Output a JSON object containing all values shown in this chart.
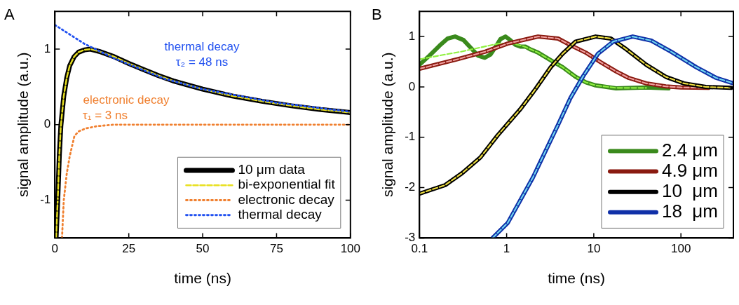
{
  "chart_data": [
    {
      "type": "line",
      "xlabel": "time (ns)",
      "ylabel": "signal amplitude (a.u.)",
      "xlim": [
        0,
        100
      ],
      "ylim": [
        -1.5,
        1.5
      ],
      "xticks": [
        0,
        25,
        50,
        75,
        100
      ],
      "yticks": [
        -1,
        0,
        1
      ],
      "grid": false,
      "legend": "bottom right",
      "marker": "none",
      "annotations": [
        "A",
        "thermal decay",
        "τ₂ = 48 ns",
        "electronic decay",
        "τ₁ = 3 ns"
      ],
      "series": [
        {
          "name": "10 μm data",
          "color": "#000000",
          "line_style": "solid",
          "x": [
            0.4,
            1,
            1.5,
            2,
            3,
            4,
            5,
            6.5,
            8,
            10,
            12,
            15,
            20,
            25,
            30,
            35,
            40,
            50,
            60,
            70,
            80,
            90,
            100
          ],
          "values": [
            -1.5,
            -0.95,
            -0.4,
            -0.02,
            0.38,
            0.62,
            0.78,
            0.9,
            0.96,
            0.99,
            1.0,
            0.97,
            0.9,
            0.81,
            0.73,
            0.65,
            0.58,
            0.47,
            0.38,
            0.31,
            0.25,
            0.2,
            0.16
          ]
        },
        {
          "name": "bi-exponential fit",
          "color": "#e8e020",
          "line_style": "dashed",
          "x": [
            0.4,
            1,
            1.5,
            2,
            3,
            4,
            5,
            6.5,
            8,
            10,
            12,
            15,
            20,
            25,
            30,
            35,
            40,
            50,
            60,
            70,
            80,
            90,
            100
          ],
          "values": [
            -1.5,
            -0.95,
            -0.4,
            -0.02,
            0.38,
            0.62,
            0.78,
            0.9,
            0.96,
            0.99,
            1.0,
            0.97,
            0.9,
            0.81,
            0.73,
            0.65,
            0.58,
            0.47,
            0.38,
            0.31,
            0.25,
            0.2,
            0.16
          ]
        },
        {
          "name": "electronic decay",
          "color": "#f08030",
          "line_style": "dotted",
          "x": [
            2.4,
            3,
            4,
            5,
            6.6,
            8,
            10.4,
            14.3,
            20,
            100
          ],
          "values": [
            -1.5,
            -1.0,
            -0.65,
            -0.42,
            -0.15,
            -0.09,
            -0.05,
            -0.02,
            0,
            0
          ]
        },
        {
          "name": "thermal decay",
          "color": "#2050f0",
          "line_style": "dotted",
          "x": [
            0,
            10,
            20,
            25,
            37,
            50,
            75,
            100
          ],
          "values": [
            1.32,
            1.07,
            0.88,
            0.8,
            0.61,
            0.47,
            0.29,
            0.17
          ]
        }
      ]
    },
    {
      "type": "line",
      "xlabel": "time (ns)",
      "ylabel": "signal amplitude (a.u.)",
      "log": "x",
      "xlim": [
        0.1,
        400
      ],
      "ylim": [
        -3,
        1.5
      ],
      "xticks": [
        0.1,
        1,
        10,
        100
      ],
      "yticks": [
        -3,
        -2,
        -1,
        0,
        1
      ],
      "grid": false,
      "legend": "bottom right",
      "marker": "none",
      "annotations": [
        "B"
      ],
      "series": [
        {
          "name": "2.4 μm",
          "color": "#3a8a1c",
          "line_style": "solid",
          "x": [
            0.1,
            0.13,
            0.17,
            0.21,
            0.256,
            0.32,
            0.4,
            0.47,
            0.56,
            0.65,
            0.75,
            0.85,
            0.97,
            1.1,
            1.25,
            1.44,
            1.64,
            1.9,
            2.3,
            3.2,
            4.4,
            6.2,
            8.1,
            10.5,
            18,
            40,
            72
          ],
          "values": [
            0.44,
            0.62,
            0.82,
            0.96,
            1.0,
            0.93,
            0.75,
            0.62,
            0.58,
            0.64,
            0.8,
            0.95,
            1.0,
            0.93,
            0.84,
            0.8,
            0.8,
            0.74,
            0.68,
            0.53,
            0.39,
            0.2,
            0.09,
            0.03,
            -0.03,
            -0.01,
            -0.03
          ]
        },
        {
          "color": "#90f040",
          "line_style": "dashed",
          "x": [
            0.1,
            0.3,
            0.8,
            1.2,
            1.6,
            2.3,
            3.2,
            4.4,
            6.2,
            8.1,
            10.5,
            18,
            40
          ],
          "values": [
            0.55,
            0.7,
            0.86,
            0.86,
            0.8,
            0.68,
            0.53,
            0.39,
            0.2,
            0.09,
            0.03,
            -0.02,
            -0.02
          ]
        },
        {
          "name": "4.9 μm",
          "color": "#8a1a10",
          "line_style": "solid",
          "x": [
            0.1,
            0.274,
            0.57,
            1.03,
            2.29,
            3.9,
            5.4,
            8.1,
            12,
            17.9,
            25,
            40,
            67,
            100,
            206
          ],
          "values": [
            0.36,
            0.55,
            0.7,
            0.86,
            1.0,
            0.96,
            0.83,
            0.68,
            0.49,
            0.31,
            0.18,
            0.07,
            0.01,
            -0.01,
            -0.02
          ]
        },
        {
          "color": "#f0a0a0",
          "line_style": "dashed",
          "x": [
            0.1,
            0.274,
            0.57,
            1.03,
            2.29,
            3.9,
            5.4,
            8.1,
            12,
            17.9,
            25,
            40,
            67,
            100,
            206
          ],
          "values": [
            0.36,
            0.55,
            0.7,
            0.86,
            1.0,
            0.96,
            0.83,
            0.68,
            0.49,
            0.31,
            0.18,
            0.07,
            0.01,
            -0.01,
            -0.02
          ]
        },
        {
          "name": "10  μm",
          "color": "#000000",
          "line_style": "solid",
          "x": [
            0.1,
            0.197,
            0.31,
            0.5,
            0.79,
            1.44,
            2.15,
            3.2,
            4.4,
            6.2,
            10.5,
            15.7,
            23.5,
            40,
            67,
            108,
            193,
            375
          ],
          "values": [
            -2.12,
            -1.95,
            -1.71,
            -1.4,
            -0.96,
            -0.44,
            -0.04,
            0.39,
            0.66,
            0.9,
            1.0,
            0.96,
            0.75,
            0.44,
            0.2,
            0.07,
            0,
            -0.02
          ]
        },
        {
          "color": "#f0e040",
          "line_style": "dashed",
          "x": [
            0.1,
            0.197,
            0.31,
            0.5,
            0.79,
            1.44,
            2.15,
            3.2,
            4.4,
            6.2,
            10.5,
            15.7,
            23.5,
            40,
            67,
            108,
            193,
            375
          ],
          "values": [
            -2.12,
            -1.95,
            -1.71,
            -1.4,
            -0.96,
            -0.44,
            -0.04,
            0.39,
            0.66,
            0.9,
            1.0,
            0.96,
            0.75,
            0.44,
            0.2,
            0.07,
            0,
            -0.02
          ]
        },
        {
          "name": "18  μm",
          "color": "#1030a8",
          "line_style": "solid",
          "x": [
            0.69,
            1.03,
            2.0,
            3.9,
            5.4,
            7.6,
            11.2,
            16.7,
            28,
            45.6,
            77,
            150,
            253,
            400
          ],
          "values": [
            -3,
            -2.7,
            -1.8,
            -0.75,
            -0.22,
            0.22,
            0.66,
            0.9,
            1.0,
            0.92,
            0.7,
            0.39,
            0.18,
            0.07
          ]
        },
        {
          "color": "#70d8f0",
          "line_style": "dashed",
          "x": [
            0.69,
            1.03,
            2.0,
            3.9,
            5.4,
            7.6,
            11.2,
            16.7,
            28,
            45.6,
            77,
            150,
            253,
            400
          ],
          "values": [
            -3,
            -2.7,
            -1.8,
            -0.75,
            -0.22,
            0.22,
            0.66,
            0.9,
            1.0,
            0.92,
            0.7,
            0.39,
            0.18,
            0.07
          ]
        }
      ]
    }
  ]
}
